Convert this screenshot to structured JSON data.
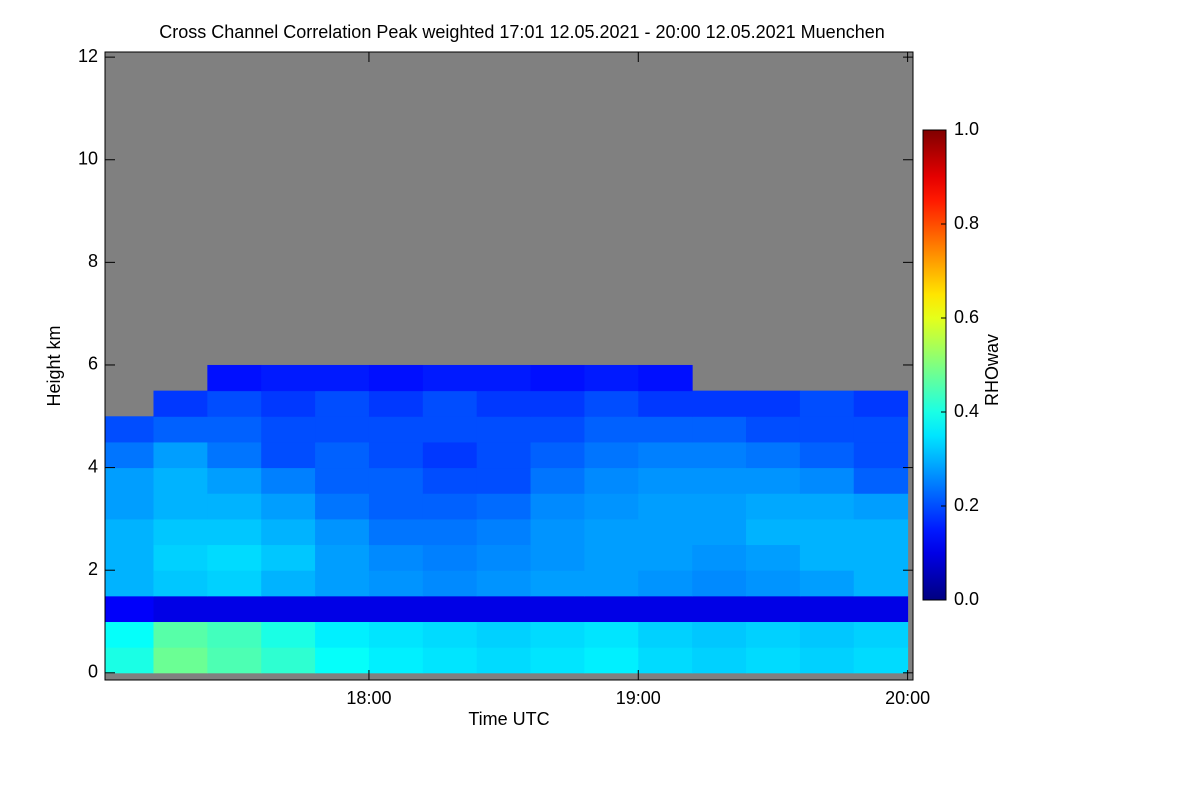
{
  "chart_data": {
    "type": "heatmap",
    "title": "Cross Channel Correlation Peak weighted   17:01 12.05.2021 - 20:00 12.05.2021 Muenchen",
    "x_label": "Time UTC",
    "y_label": "Height km",
    "colorbar_label": "RHOwav",
    "colormap": "jet",
    "missing_color": "#808080",
    "xlim": [
      17.02,
      20.02
    ],
    "xticks": [
      {
        "value": 18,
        "label": "18:00"
      },
      {
        "value": 19,
        "label": "19:00"
      },
      {
        "value": 20,
        "label": "20:00"
      }
    ],
    "ylim": [
      -0.14,
      12.1
    ],
    "yticks": [
      0,
      2,
      4,
      6,
      8,
      10,
      12
    ],
    "zlim": [
      0,
      1
    ],
    "zticks": [
      {
        "value": 0,
        "label": "0.0"
      },
      0.2,
      0.4,
      0.6,
      0.8,
      {
        "value": 1,
        "label": "1.0"
      }
    ],
    "x": [
      17.1,
      17.3,
      17.5,
      17.7,
      17.9,
      18.1,
      18.3,
      18.5,
      18.7,
      18.9,
      19.1,
      19.3,
      19.5,
      19.7,
      19.9
    ],
    "y": [
      0.25,
      0.75,
      1.25,
      1.75,
      2.25,
      2.75,
      3.25,
      3.75,
      4.25,
      4.75,
      5.25,
      5.75
    ],
    "z": [
      [
        0.4,
        0.48,
        0.45,
        0.42,
        0.38,
        0.36,
        0.35,
        0.34,
        0.35,
        0.36,
        0.34,
        0.33,
        0.34,
        0.33,
        0.34
      ],
      [
        0.38,
        0.46,
        0.44,
        0.4,
        0.36,
        0.35,
        0.34,
        0.33,
        0.34,
        0.35,
        0.33,
        0.32,
        0.33,
        0.32,
        0.33
      ],
      [
        0.12,
        0.1,
        0.1,
        0.1,
        0.1,
        0.1,
        0.1,
        0.1,
        0.1,
        0.1,
        0.1,
        0.1,
        0.1,
        0.1,
        0.1
      ],
      [
        0.3,
        0.32,
        0.33,
        0.3,
        0.28,
        0.27,
        0.26,
        0.27,
        0.28,
        0.28,
        0.27,
        0.26,
        0.27,
        0.28,
        0.3
      ],
      [
        0.3,
        0.33,
        0.34,
        0.32,
        0.28,
        0.26,
        0.25,
        0.26,
        0.27,
        0.28,
        0.28,
        0.27,
        0.28,
        0.3,
        0.3
      ],
      [
        0.3,
        0.32,
        0.32,
        0.3,
        0.27,
        0.24,
        0.24,
        0.25,
        0.27,
        0.28,
        0.28,
        0.28,
        0.3,
        0.3,
        0.3
      ],
      [
        0.28,
        0.3,
        0.3,
        0.28,
        0.24,
        0.22,
        0.22,
        0.23,
        0.26,
        0.27,
        0.28,
        0.28,
        0.29,
        0.29,
        0.28
      ],
      [
        0.28,
        0.3,
        0.28,
        0.25,
        0.22,
        0.22,
        0.2,
        0.2,
        0.24,
        0.26,
        0.27,
        0.27,
        0.27,
        0.26,
        0.22
      ],
      [
        0.24,
        0.28,
        0.24,
        0.2,
        0.22,
        0.2,
        0.18,
        0.2,
        0.22,
        0.24,
        0.25,
        0.25,
        0.24,
        0.22,
        0.2
      ],
      [
        0.2,
        0.22,
        0.22,
        0.2,
        0.2,
        0.2,
        0.2,
        0.2,
        0.2,
        0.22,
        0.22,
        0.22,
        0.2,
        0.2,
        0.2
      ],
      [
        null,
        0.18,
        0.2,
        0.18,
        0.2,
        0.18,
        0.2,
        0.18,
        0.18,
        0.2,
        0.18,
        0.18,
        0.18,
        0.2,
        0.18
      ],
      [
        null,
        null,
        0.14,
        0.15,
        0.15,
        0.14,
        0.15,
        0.15,
        0.14,
        0.15,
        0.14,
        null,
        null,
        null,
        null
      ]
    ]
  }
}
